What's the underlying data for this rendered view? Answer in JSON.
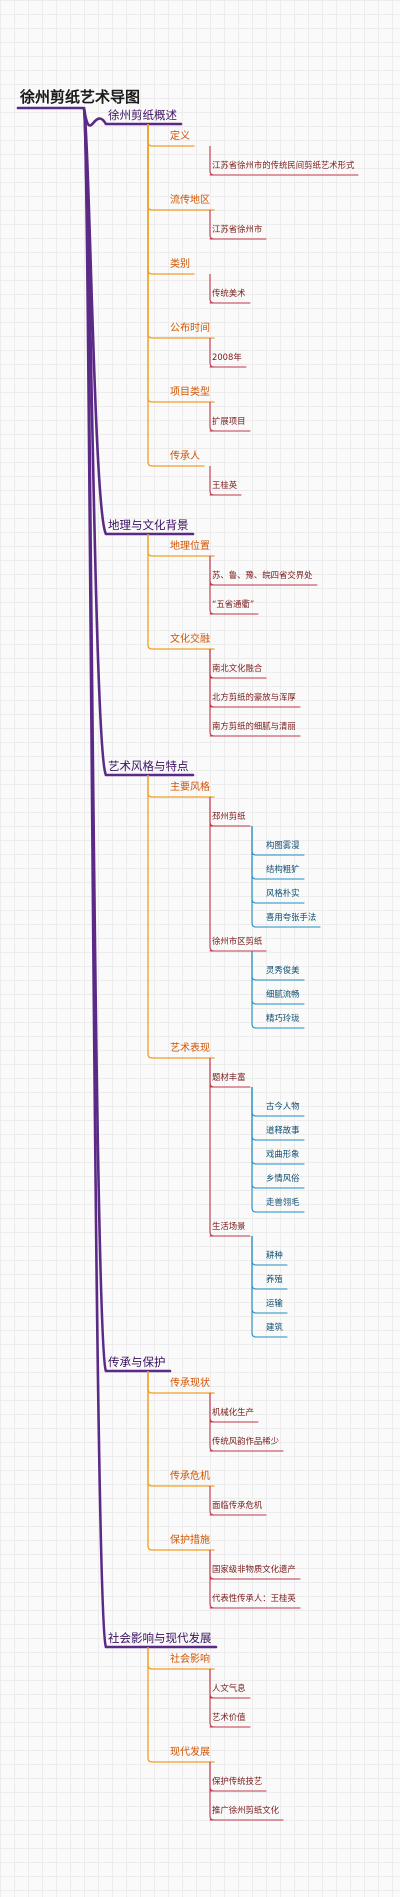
{
  "title": "徐州剪纸艺术导图",
  "colors": {
    "l1": "#5b2a86",
    "l2": "#f0a020",
    "l3": "#c0364a",
    "l4": "#1f8fc4"
  },
  "nodes": [
    {
      "level": 1,
      "text": "徐州剪纸概述",
      "children": [
        {
          "level": 2,
          "text": "定义",
          "children": [
            {
              "level": 3,
              "text": "江苏省徐州市的传统民间剪纸艺术形式",
              "children": []
            }
          ]
        },
        {
          "level": 2,
          "text": "流传地区",
          "children": [
            {
              "level": 3,
              "text": "江苏省徐州市",
              "children": []
            }
          ]
        },
        {
          "level": 2,
          "text": "类别",
          "children": [
            {
              "level": 3,
              "text": "传统美术",
              "children": []
            }
          ]
        },
        {
          "level": 2,
          "text": "公布时间",
          "children": [
            {
              "level": 3,
              "text": "2008年",
              "children": []
            }
          ]
        },
        {
          "level": 2,
          "text": "项目类型",
          "children": [
            {
              "level": 3,
              "text": "扩展项目",
              "children": []
            }
          ]
        },
        {
          "level": 2,
          "text": "传承人",
          "children": [
            {
              "level": 3,
              "text": "王桂英",
              "children": []
            }
          ]
        }
      ]
    },
    {
      "level": 1,
      "text": "地理与文化背景",
      "children": [
        {
          "level": 2,
          "text": "地理位置",
          "children": [
            {
              "level": 3,
              "text": "苏、鲁、豫、皖四省交界处",
              "children": []
            },
            {
              "level": 3,
              "text": "“五省通衢”",
              "children": []
            }
          ]
        },
        {
          "level": 2,
          "text": "文化交融",
          "children": [
            {
              "level": 3,
              "text": "南北文化融合",
              "children": []
            },
            {
              "level": 3,
              "text": "北方剪纸的豪放与浑厚",
              "children": []
            },
            {
              "level": 3,
              "text": "南方剪纸的细腻与清丽",
              "children": []
            }
          ]
        }
      ]
    },
    {
      "level": 1,
      "text": "艺术风格与特点",
      "children": [
        {
          "level": 2,
          "text": "主要风格",
          "children": [
            {
              "level": 3,
              "text": "邳州剪纸",
              "children": [
                {
                  "level": 4,
                  "text": "构图雾漫"
                },
                {
                  "level": 4,
                  "text": "结构粗犷"
                },
                {
                  "level": 4,
                  "text": "风格朴实"
                },
                {
                  "level": 4,
                  "text": "喜用夸张手法"
                }
              ]
            },
            {
              "level": 3,
              "text": "徐州市区剪纸",
              "children": [
                {
                  "level": 4,
                  "text": "灵秀俊美"
                },
                {
                  "level": 4,
                  "text": "细腻流畅"
                },
                {
                  "level": 4,
                  "text": "精巧玲珑"
                }
              ]
            }
          ]
        },
        {
          "level": 2,
          "text": "艺术表现",
          "children": [
            {
              "level": 3,
              "text": "题材丰富",
              "children": [
                {
                  "level": 4,
                  "text": "古今人物"
                },
                {
                  "level": 4,
                  "text": "道释故事"
                },
                {
                  "level": 4,
                  "text": "戏曲形象"
                },
                {
                  "level": 4,
                  "text": "乡情风俗"
                },
                {
                  "level": 4,
                  "text": "走兽翎毛"
                }
              ]
            },
            {
              "level": 3,
              "text": "生活场景",
              "children": [
                {
                  "level": 4,
                  "text": "耕种"
                },
                {
                  "level": 4,
                  "text": "养殖"
                },
                {
                  "level": 4,
                  "text": "运输"
                },
                {
                  "level": 4,
                  "text": "建筑"
                }
              ]
            }
          ]
        }
      ]
    },
    {
      "level": 1,
      "text": "传承与保护",
      "children": [
        {
          "level": 2,
          "text": "传承现状",
          "children": [
            {
              "level": 3,
              "text": "机械化生产",
              "children": []
            },
            {
              "level": 3,
              "text": "传统风韵作品稀少",
              "children": []
            }
          ]
        },
        {
          "level": 2,
          "text": "传承危机",
          "children": [
            {
              "level": 3,
              "text": "面临传承危机",
              "children": []
            }
          ]
        },
        {
          "level": 2,
          "text": "保护措施",
          "children": [
            {
              "level": 3,
              "text": "国家级非物质文化遗产",
              "children": []
            },
            {
              "level": 3,
              "text": "代表性传承人：王桂英",
              "children": []
            }
          ]
        }
      ]
    },
    {
      "level": 1,
      "text": "社会影响与现代发展",
      "children": [
        {
          "level": 2,
          "text": "社会影响",
          "children": [
            {
              "level": 3,
              "text": "人文气息",
              "children": []
            },
            {
              "level": 3,
              "text": "艺术价值",
              "children": []
            }
          ]
        },
        {
          "level": 2,
          "text": "现代发展",
          "children": [
            {
              "level": 3,
              "text": "保护传统技艺",
              "children": []
            },
            {
              "level": 3,
              "text": "推广徐州剪纸文化",
              "children": []
            }
          ]
        }
      ]
    }
  ]
}
